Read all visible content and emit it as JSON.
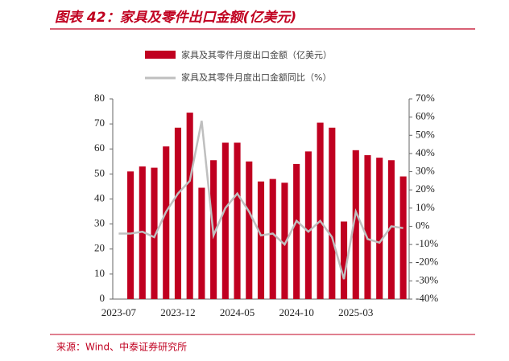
{
  "chart_data": {
    "type": "bar_line",
    "title": "图表 42：家具及零件出口金额(亿美元)",
    "source": "来源：Wind、中泰证券研究所",
    "categories": [
      "2023-07",
      null,
      null,
      null,
      null,
      "2023-12",
      null,
      null,
      null,
      null,
      "2024-05",
      null,
      null,
      null,
      null,
      "2024-10",
      null,
      null,
      null,
      null,
      "2025-03",
      null,
      null,
      null,
      null
    ],
    "series": [
      {
        "name": "家具及其零件月度出口金额（亿美元）",
        "color": "#c00020",
        "type": "bar",
        "values": [
          null,
          51,
          53,
          52.5,
          61,
          68.5,
          74.5,
          44.5,
          55.5,
          62.5,
          62.5,
          55,
          47,
          48,
          46.5,
          54,
          59,
          70.5,
          68.5,
          31,
          59.5,
          57.5,
          56.5,
          55.5,
          49
        ]
      },
      {
        "name": "家具及其零件月度出口金额同比（%）",
        "color": "#bfbfbf",
        "type": "line",
        "axis": "y2",
        "values": [
          -4,
          -4,
          -3,
          -6,
          8,
          18,
          25,
          58,
          -5,
          10,
          18,
          8,
          -5,
          -4,
          -10,
          3,
          -3,
          3,
          -6,
          -29,
          8,
          -7,
          -9,
          0,
          -1
        ]
      }
    ],
    "ylim": [
      0,
      80
    ],
    "yticks": [
      0,
      10,
      20,
      30,
      40,
      50,
      60,
      70,
      80
    ],
    "y2lim": [
      -40,
      70
    ],
    "y2ticks": [
      {
        "value": -40,
        "label": "-40%"
      },
      {
        "value": -30,
        "label": "-30%"
      },
      {
        "value": -20,
        "label": "-20%"
      },
      {
        "value": -10,
        "label": "-10%"
      },
      {
        "value": 0,
        "label": "0%"
      },
      {
        "value": 10,
        "label": "10%"
      },
      {
        "value": 20,
        "label": "20%"
      },
      {
        "value": 30,
        "label": "30%"
      },
      {
        "value": 40,
        "label": "40%"
      },
      {
        "value": 50,
        "label": "50%"
      },
      {
        "value": 60,
        "label": "60%"
      },
      {
        "value": 70,
        "label": "70%"
      }
    ],
    "grid": false
  }
}
